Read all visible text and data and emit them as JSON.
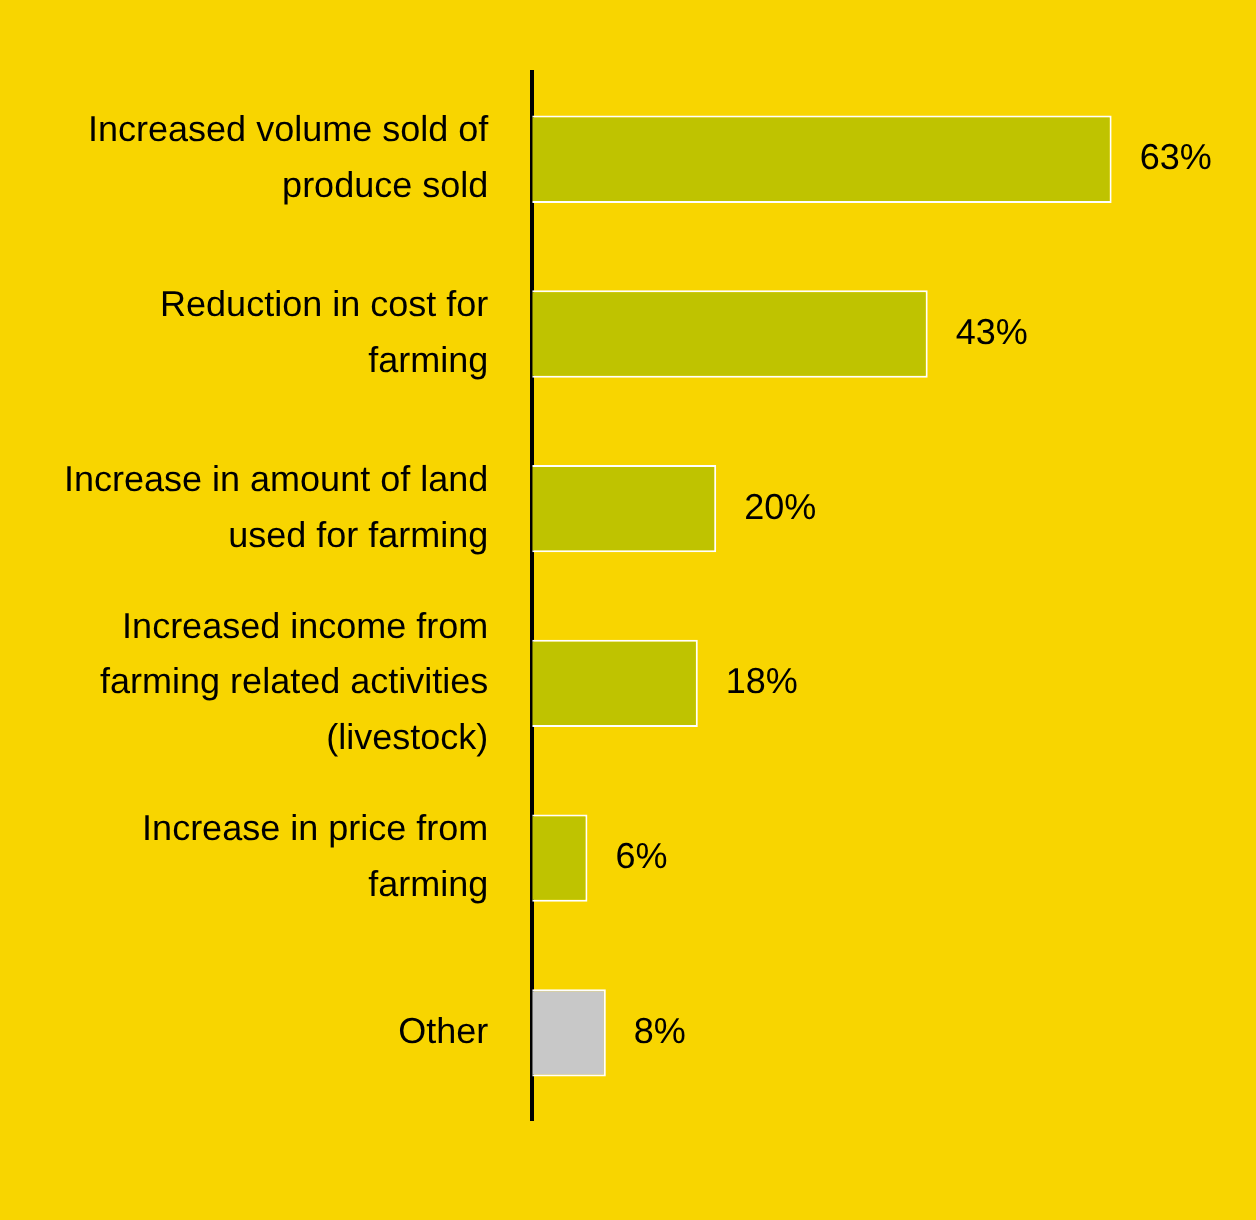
{
  "chart_data": {
    "type": "bar",
    "orientation": "horizontal",
    "categories": [
      "Increased volume sold of produce sold",
      "Reduction in cost for farming",
      "Increase in amount of land used for farming",
      "Increased income from farming related activities (livestock)",
      "Increase in price from farming",
      "Other"
    ],
    "values": [
      63,
      43,
      20,
      18,
      6,
      8
    ],
    "colors": [
      "#bfc300",
      "#bfc300",
      "#bfc300",
      "#bfc300",
      "#bfc300",
      "#c8c8c8"
    ],
    "value_labels": [
      "63%",
      "43%",
      "20%",
      "18%",
      "6%",
      "8%"
    ],
    "grid": false,
    "legend": false,
    "tick_labels": "y"
  }
}
